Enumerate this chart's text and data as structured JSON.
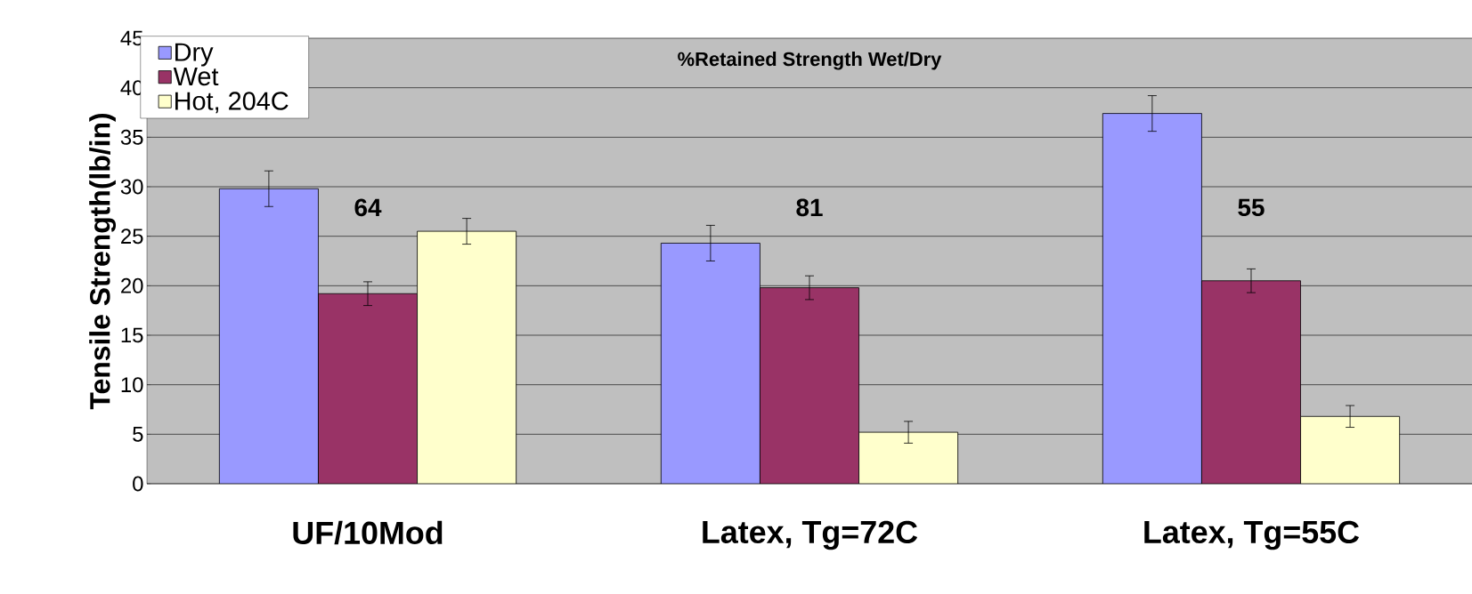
{
  "chart_data": {
    "type": "bar",
    "title": "%Retained Strength Wet/Dry",
    "ylabel": "Tensile Strength(lb/in)",
    "categories": [
      "UF/10Mod",
      "Latex, Tg=72C",
      "Latex, Tg=55C"
    ],
    "series": [
      {
        "name": "Dry",
        "color": "#9999ff",
        "values": [
          29.8,
          24.3,
          37.4
        ],
        "errors": [
          1.8,
          1.8,
          1.8
        ]
      },
      {
        "name": "Wet",
        "color": "#993366",
        "values": [
          19.2,
          19.8,
          20.5
        ],
        "errors": [
          1.2,
          1.2,
          1.2
        ]
      },
      {
        "name": "Hot, 204C",
        "color": "#ffffcc",
        "values": [
          25.5,
          5.2,
          6.8
        ],
        "errors": [
          1.3,
          1.1,
          1.1
        ]
      }
    ],
    "ylim": [
      0,
      45
    ],
    "yticks": [
      0,
      5,
      10,
      15,
      20,
      25,
      30,
      35,
      40,
      45
    ],
    "grid": "y",
    "legend": "top left",
    "annotations": [
      "64",
      "81",
      "55"
    ]
  }
}
